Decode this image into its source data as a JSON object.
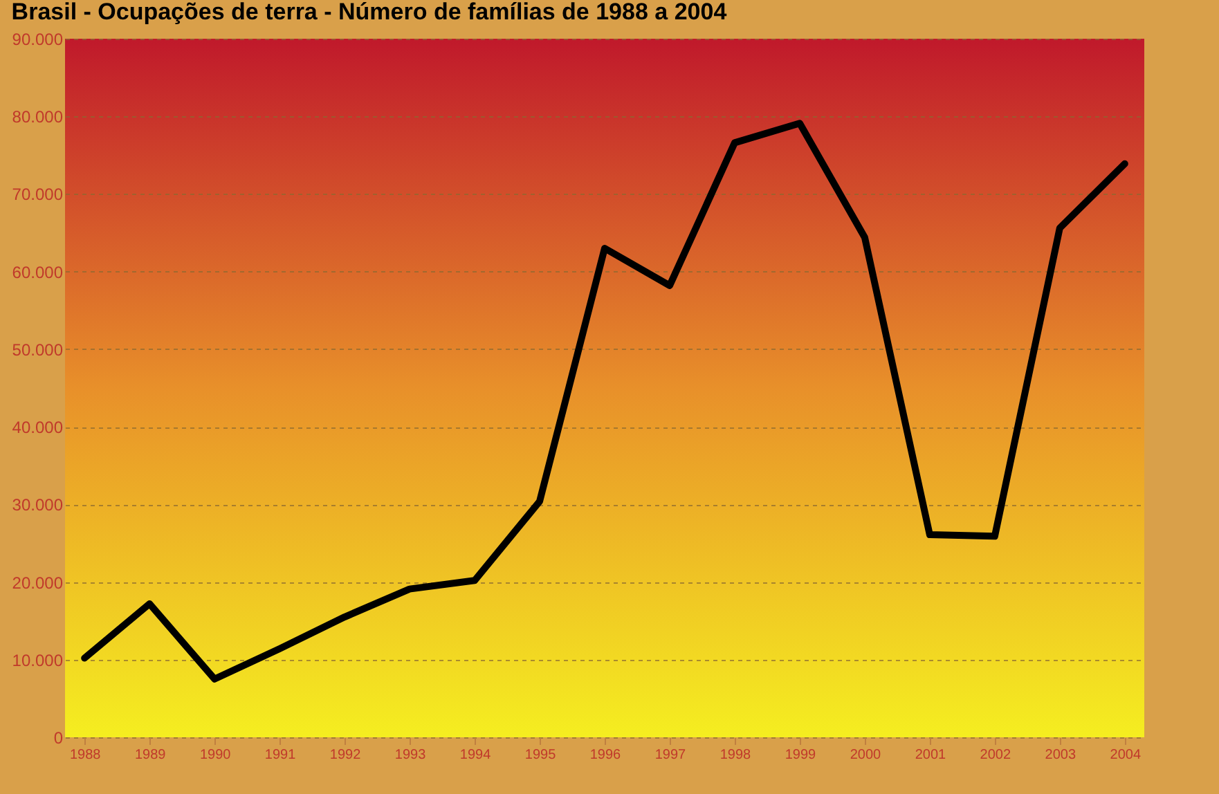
{
  "chart_data": {
    "type": "line",
    "title": "Brasil - Ocupações de terra - Número de famílias de 1988 a 2004",
    "categories": [
      "1988",
      "1989",
      "1990",
      "1991",
      "1992",
      "1993",
      "1994",
      "1995",
      "1996",
      "1997",
      "1998",
      "1999",
      "2000",
      "2001",
      "2002",
      "2003",
      "2004"
    ],
    "series": [
      {
        "color": "#000000",
        "values": [
          10200,
          17200,
          7500,
          11400,
          15500,
          19100,
          20200,
          30400,
          63000,
          58200,
          76600,
          79100,
          64400,
          26100,
          25900,
          65600,
          73900
        ]
      }
    ],
    "ylim": [
      0,
      90000
    ],
    "yticks": [
      {
        "value": 0,
        "label": "0"
      },
      {
        "value": 10000,
        "label": "10.000"
      },
      {
        "value": 20000,
        "label": "20.000"
      },
      {
        "value": 30000,
        "label": "30.000"
      },
      {
        "value": 40000,
        "label": "40.000"
      },
      {
        "value": 50000,
        "label": "50.000"
      },
      {
        "value": 60000,
        "label": "60.000"
      },
      {
        "value": 70000,
        "label": "70.000"
      },
      {
        "value": 80000,
        "label": "80.000"
      },
      {
        "value": 90000,
        "label": "90.000"
      }
    ],
    "grid": "y",
    "marker": "none",
    "line_style": "solid"
  }
}
